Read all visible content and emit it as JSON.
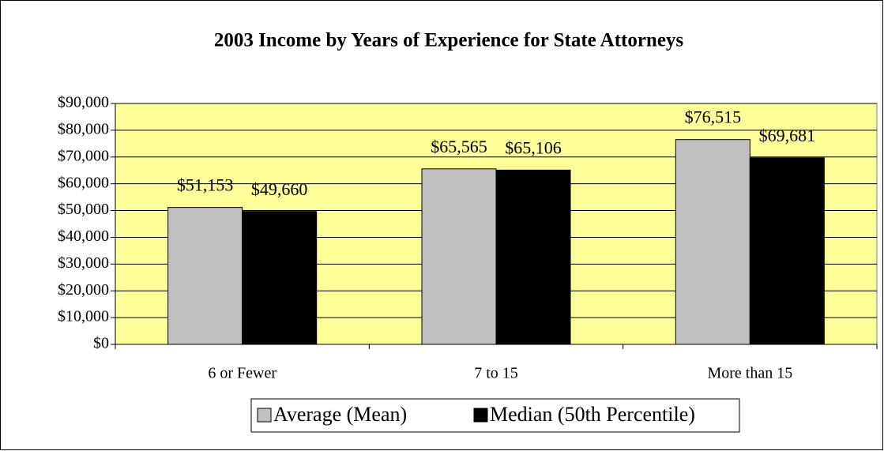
{
  "chart_data": {
    "type": "bar",
    "title": "2003 Income by Years of Experience for State Attorneys",
    "categories": [
      "6 or Fewer",
      "7 to 15",
      "More than 15"
    ],
    "series": [
      {
        "name": "Average (Mean)",
        "color": "#c0c0c0",
        "values": [
          51153,
          65565,
          76515
        ],
        "value_labels": [
          "$51,153",
          "$65,565",
          "$76,515"
        ]
      },
      {
        "name": "Median (50th Percentile)",
        "color": "#000000",
        "values": [
          49660,
          65106,
          69681
        ],
        "value_labels": [
          "$49,660",
          "$65,106",
          "$69,681"
        ]
      }
    ],
    "ylim": [
      0,
      90000
    ],
    "yticks": [
      {
        "value": 0,
        "label": "$0"
      },
      {
        "value": 10000,
        "label": "$10,000"
      },
      {
        "value": 20000,
        "label": "$20,000"
      },
      {
        "value": 30000,
        "label": "$30,000"
      },
      {
        "value": 40000,
        "label": "$40,000"
      },
      {
        "value": 50000,
        "label": "$50,000"
      },
      {
        "value": 60000,
        "label": "$60,000"
      },
      {
        "value": 70000,
        "label": "$70,000"
      },
      {
        "value": 80000,
        "label": "$80,000"
      },
      {
        "value": 90000,
        "label": "$90,000"
      }
    ],
    "grid": true,
    "plot_background": "#ffff99",
    "legend": "bottom"
  }
}
